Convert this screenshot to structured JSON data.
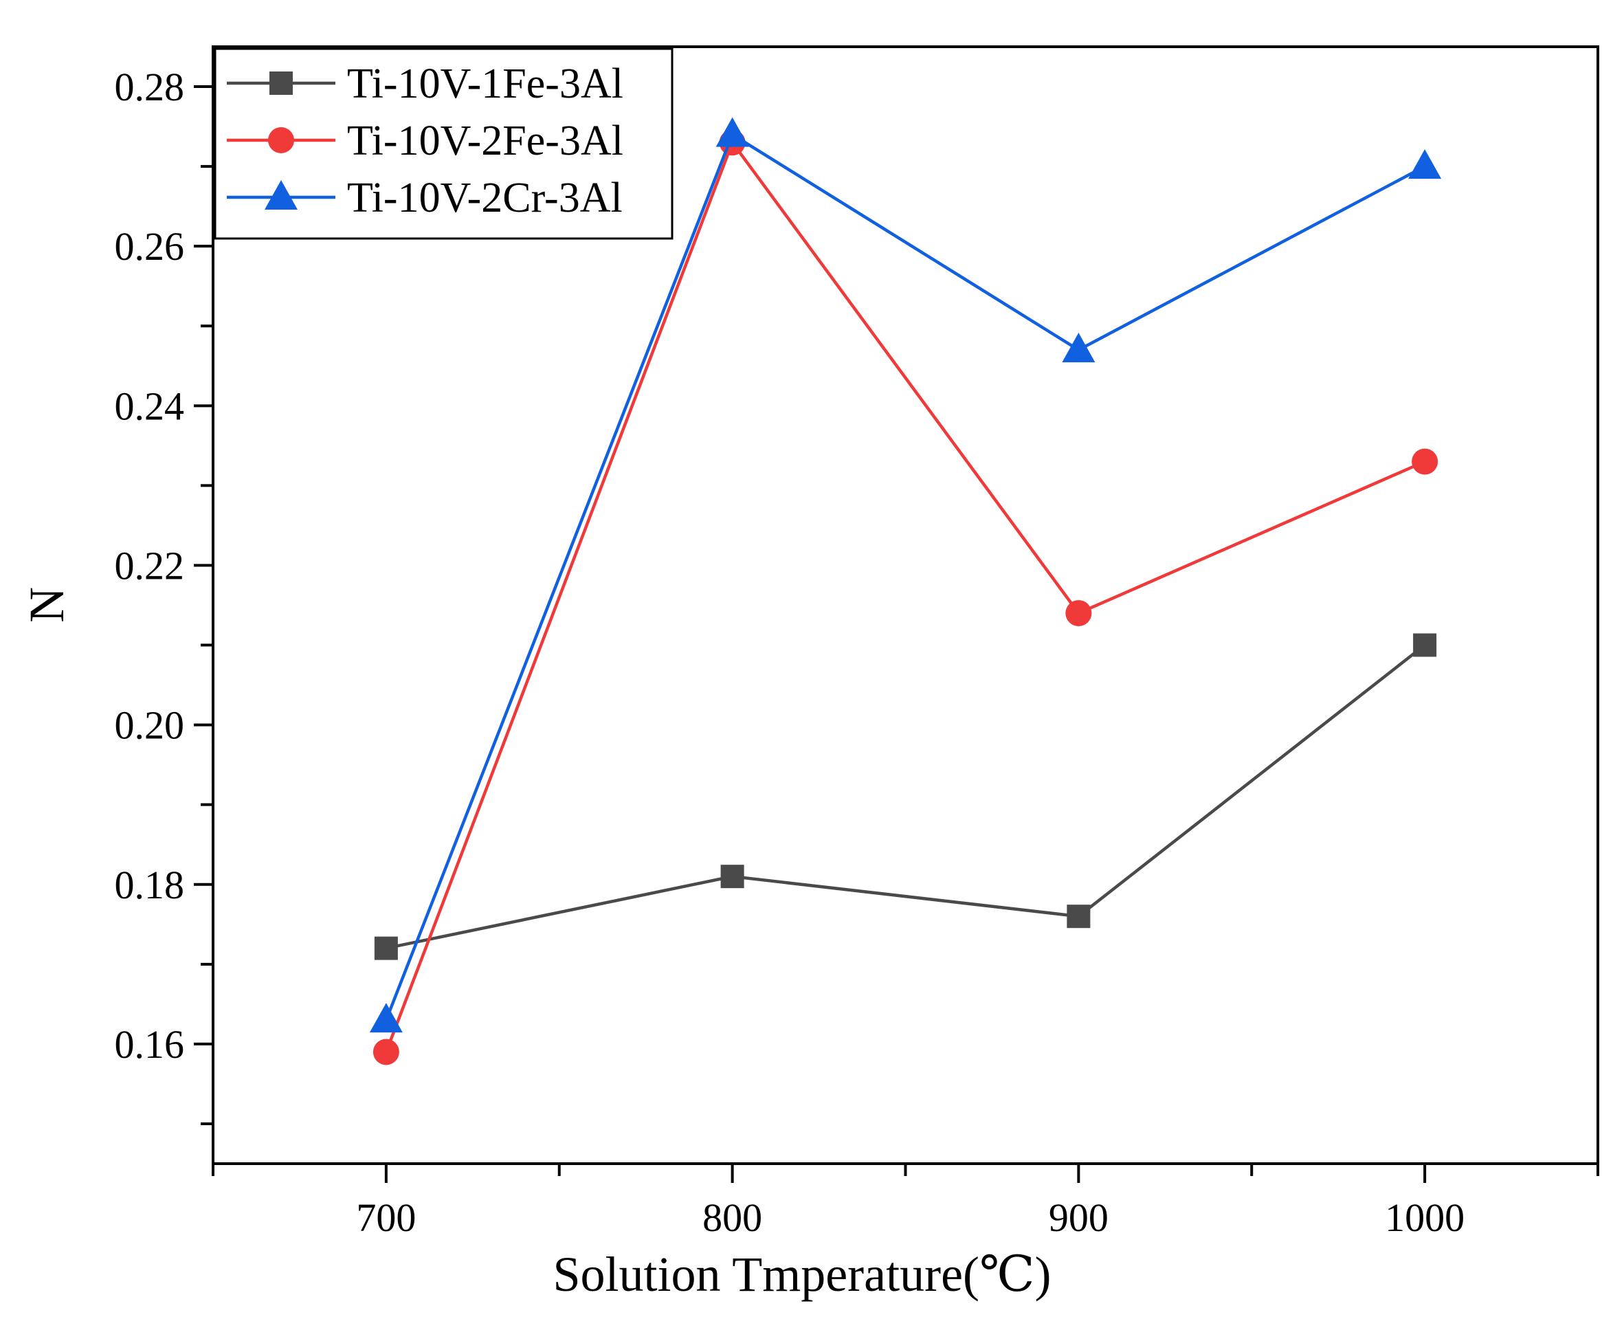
{
  "chart_data": {
    "type": "line",
    "title": "",
    "xlabel": "Solution Tmperature(℃)",
    "ylabel": "N",
    "x": [
      700,
      800,
      900,
      1000
    ],
    "xlim": [
      650,
      1050
    ],
    "ylim": [
      0.145,
      0.285
    ],
    "xticks": [
      "700",
      "800",
      "900",
      "1000"
    ],
    "yticks": [
      "0.16",
      "0.18",
      "0.20",
      "0.22",
      "0.24",
      "0.26",
      "0.28"
    ],
    "grid": false,
    "legend_position": "top-left",
    "series": [
      {
        "name": "Ti-10V-1Fe-3Al",
        "values": [
          0.172,
          0.181,
          0.176,
          0.21
        ],
        "color": "#4a4a4a",
        "marker": "square"
      },
      {
        "name": "Ti-10V-2Fe-3Al",
        "values": [
          0.159,
          0.273,
          0.214,
          0.233
        ],
        "color": "#f03a3a",
        "marker": "circle"
      },
      {
        "name": "Ti-10V-2Cr-3Al",
        "values": [
          0.163,
          0.274,
          0.247,
          0.27
        ],
        "color": "#1060e0",
        "marker": "triangle"
      }
    ]
  }
}
